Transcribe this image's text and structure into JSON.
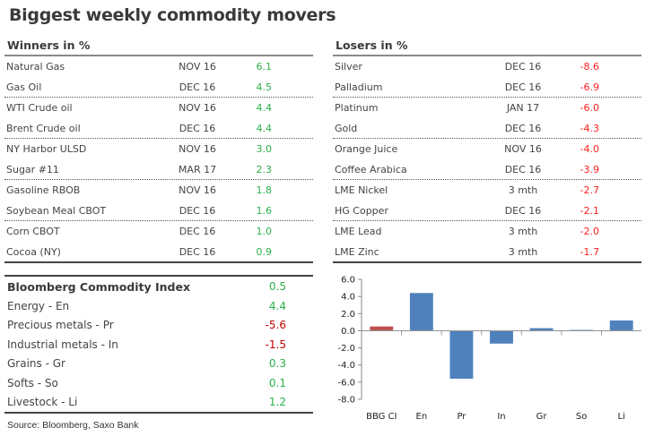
{
  "title": "Biggest weekly commodity movers",
  "winners": {
    "heading": "Winners in %",
    "rows": [
      {
        "name": "Natural Gas",
        "contract": "NOV 16",
        "value": "6.1"
      },
      {
        "name": "Gas Oil",
        "contract": "DEC 16",
        "value": "4.5"
      },
      {
        "name": "WTI Crude oil",
        "contract": "NOV 16",
        "value": "4.4"
      },
      {
        "name": "Brent Crude oil",
        "contract": "DEC 16",
        "value": "4.4"
      },
      {
        "name": "NY Harbor ULSD",
        "contract": "NOV 16",
        "value": "3.0"
      },
      {
        "name": "Sugar #11",
        "contract": "MAR 17",
        "value": "2.3"
      },
      {
        "name": "Gasoline RBOB",
        "contract": "NOV 16",
        "value": "1.8"
      },
      {
        "name": "Soybean Meal CBOT",
        "contract": "DEC 16",
        "value": "1.6"
      },
      {
        "name": "Corn CBOT",
        "contract": "DEC 16",
        "value": "1.0"
      },
      {
        "name": "Cocoa (NY)",
        "contract": "DEC 16",
        "value": "0.9"
      }
    ]
  },
  "losers": {
    "heading": "Losers in %",
    "rows": [
      {
        "name": "Silver",
        "contract": "DEC 16",
        "value": "-8.6"
      },
      {
        "name": "Palladium",
        "contract": "DEC 16",
        "value": "-6.9"
      },
      {
        "name": "Platinum",
        "contract": "JAN 17",
        "value": "-6.0"
      },
      {
        "name": "Gold",
        "contract": "DEC 16",
        "value": "-4.3"
      },
      {
        "name": "Orange Juice",
        "contract": "NOV 16",
        "value": "-4.0"
      },
      {
        "name": "Coffee Arabica",
        "contract": "DEC 16",
        "value": "-3.9"
      },
      {
        "name": "LME Nickel",
        "contract": "3 mth",
        "value": "-2.7"
      },
      {
        "name": "HG Copper",
        "contract": "DEC 16",
        "value": "-2.1"
      },
      {
        "name": "LME Lead",
        "contract": "3 mth",
        "value": "-2.0"
      },
      {
        "name": "LME Zinc",
        "contract": "3 mth",
        "value": "-1.7"
      }
    ]
  },
  "index": {
    "heading": "Bloomberg Commodity Index",
    "heading_value": "0.5",
    "rows": [
      {
        "name": "Energy - En",
        "value": "4.4"
      },
      {
        "name": "Precious metals - Pr",
        "value": "-5.6"
      },
      {
        "name": "Industrial metals - In",
        "value": "-1.5"
      },
      {
        "name": "Grains - Gr",
        "value": "0.3"
      },
      {
        "name": "Softs - So",
        "value": "0.1"
      },
      {
        "name": "Livestock - Li",
        "value": "1.2"
      }
    ]
  },
  "source": "Source: Bloomberg, Saxo Bank",
  "colors": {
    "positive": "#2bb04a",
    "negative": "#ff2020",
    "index_negative": "#c00000",
    "bar_main": "#4f81bd",
    "bar_highlight": "#c0504d"
  },
  "chart_data": {
    "type": "bar",
    "title": "",
    "xlabel": "",
    "ylabel": "",
    "categories": [
      "BBG CI",
      "En",
      "Pr",
      "In",
      "Gr",
      "So",
      "Li"
    ],
    "values": [
      0.5,
      4.4,
      -5.6,
      -1.5,
      0.3,
      0.1,
      1.2
    ],
    "highlight_index": 0,
    "ylim": [
      -8.0,
      6.0
    ],
    "yticks": [
      "6.0",
      "4.0",
      "2.0",
      "0.0",
      "-2.0",
      "-4.0",
      "-6.0",
      "-8.0"
    ],
    "ytick_values": [
      6,
      4,
      2,
      0,
      -2,
      -4,
      -6,
      -8
    ],
    "grid": false,
    "legend": "none"
  }
}
